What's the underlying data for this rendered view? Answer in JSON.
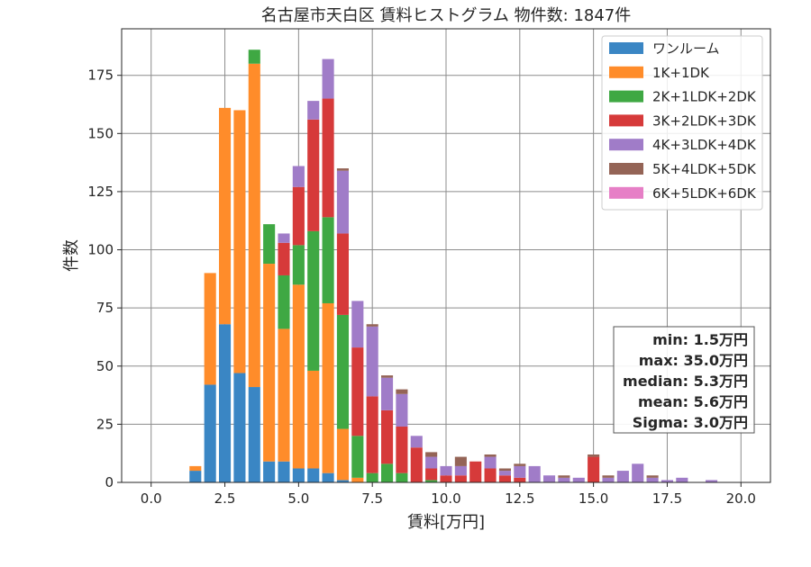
{
  "chart_data": {
    "type": "bar",
    "stacked": true,
    "title": "名古屋市天白区 賃料ヒストグラム  物件数: 1847件",
    "xlabel": "賃料[万円]",
    "ylabel": "件数",
    "xlim": [
      -1.0,
      21.0
    ],
    "ylim": [
      0,
      195
    ],
    "bin_width": 0.5,
    "grid": true,
    "legend_position": "top-right",
    "x_ticks": [
      "0.0",
      "2.5",
      "5.0",
      "7.5",
      "10.0",
      "12.5",
      "15.0",
      "17.5",
      "20.0"
    ],
    "y_ticks": [
      "0",
      "25",
      "50",
      "75",
      "100",
      "125",
      "150",
      "175"
    ],
    "x": [
      1.5,
      2.0,
      2.5,
      3.0,
      3.5,
      4.0,
      4.5,
      5.0,
      5.5,
      6.0,
      6.5,
      7.0,
      7.5,
      8.0,
      8.5,
      9.0,
      9.5,
      10.0,
      10.5,
      11.0,
      11.5,
      12.0,
      12.5,
      13.0,
      13.5,
      14.0,
      14.5,
      15.0,
      15.5,
      16.0,
      16.5,
      17.0,
      17.5,
      18.0,
      18.5,
      19.0
    ],
    "series": [
      {
        "name": "ワンルーム",
        "color": "#3a86c4",
        "values": [
          5,
          42,
          68,
          47,
          41,
          9,
          9,
          6,
          6,
          4,
          1,
          0,
          0,
          0,
          0,
          0,
          0,
          0,
          0,
          0,
          0,
          0,
          0,
          0,
          0,
          0,
          0,
          0,
          0,
          0,
          0,
          0,
          0,
          0,
          0,
          0
        ]
      },
      {
        "name": "1K+1DK",
        "color": "#ff8c2a",
        "values": [
          2,
          48,
          93,
          113,
          139,
          85,
          57,
          79,
          42,
          73,
          22,
          2,
          0,
          0,
          0,
          0,
          0,
          0,
          0,
          0,
          0,
          0,
          0,
          0,
          0,
          0,
          0,
          0,
          0,
          0,
          0,
          0,
          0,
          0,
          0,
          0
        ]
      },
      {
        "name": "2K+1LDK+2DK",
        "color": "#3fa843",
        "values": [
          0,
          0,
          0,
          0,
          6,
          17,
          23,
          17,
          60,
          37,
          49,
          18,
          4,
          8,
          4,
          0,
          1,
          0,
          0,
          0,
          0,
          0,
          0,
          0,
          0,
          0,
          0,
          0,
          0,
          0,
          0,
          0,
          0,
          0,
          0,
          0
        ]
      },
      {
        "name": "3K+2LDK+3DK",
        "color": "#d63a3a",
        "values": [
          0,
          0,
          0,
          0,
          0,
          0,
          14,
          25,
          48,
          51,
          35,
          38,
          33,
          23,
          20,
          15,
          5,
          3,
          3,
          9,
          6,
          3,
          2,
          0,
          0,
          0,
          0,
          11,
          0,
          0,
          0,
          0,
          0,
          0,
          0,
          0
        ]
      },
      {
        "name": "4K+3LDK+4DK",
        "color": "#a07cc8",
        "values": [
          0,
          0,
          0,
          0,
          0,
          0,
          4,
          9,
          8,
          17,
          27,
          20,
          30,
          14,
          14,
          5,
          5,
          4,
          4,
          0,
          5,
          2,
          5,
          7,
          3,
          2,
          2,
          0,
          2,
          5,
          8,
          2,
          1,
          2,
          0,
          1
        ]
      },
      {
        "name": "5K+4LDK+5DK",
        "color": "#946456",
        "values": [
          0,
          0,
          0,
          0,
          0,
          0,
          0,
          0,
          0,
          0,
          1,
          0,
          1,
          1,
          2,
          0,
          2,
          0,
          4,
          0,
          1,
          1,
          1,
          0,
          0,
          1,
          0,
          1,
          1,
          0,
          0,
          1,
          0,
          0,
          0,
          0
        ]
      },
      {
        "name": "6K+5LDK+6DK",
        "color": "#e67fc6",
        "values": [
          0,
          0,
          0,
          0,
          0,
          0,
          0,
          0,
          0,
          0,
          0,
          0,
          0,
          0,
          0,
          0,
          0,
          0,
          0,
          0,
          0,
          0,
          0,
          0,
          0,
          0,
          0,
          0,
          0,
          0,
          0,
          0,
          0,
          0,
          0,
          0
        ]
      }
    ]
  },
  "stats": {
    "min": "min: 1.5万円",
    "max": "max: 35.0万円",
    "median": "median: 5.3万円",
    "mean": "mean: 5.6万円",
    "sigma": "Sigma: 3.0万円"
  }
}
